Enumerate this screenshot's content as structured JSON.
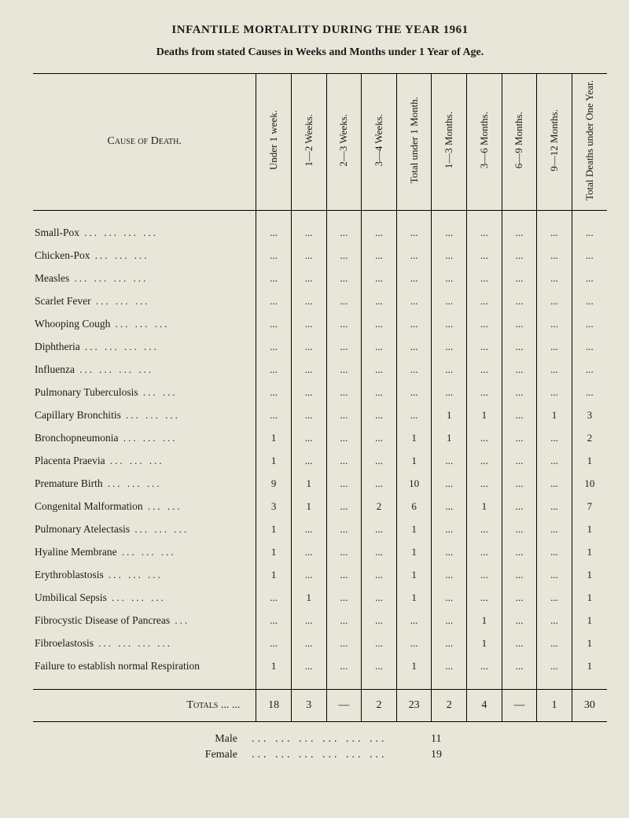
{
  "title": "INFANTILE MORTALITY DURING THE YEAR 1961",
  "subtitle": "Deaths from stated Causes in Weeks and Months under 1 Year of Age.",
  "headers": {
    "cause": "Cause of Death.",
    "cols": [
      "Under 1 week.",
      "1—2 Weeks.",
      "2—3 Weeks.",
      "3—4 Weeks.",
      "Total under 1 Month.",
      "1—3 Months.",
      "3—6 Months.",
      "6—9 Months.",
      "9—12 Months.",
      "Total Deaths under One Year."
    ]
  },
  "ellipsis": "...",
  "rows": [
    {
      "label": "Small-Pox",
      "pad": 4,
      "vals": [
        "...",
        "...",
        "...",
        "...",
        "...",
        "...",
        "...",
        "...",
        "...",
        "..."
      ]
    },
    {
      "label": "Chicken-Pox",
      "pad": 3,
      "vals": [
        "...",
        "...",
        "...",
        "...",
        "...",
        "...",
        "...",
        "...",
        "...",
        "..."
      ]
    },
    {
      "label": "Measles",
      "pad": 4,
      "vals": [
        "...",
        "...",
        "...",
        "...",
        "...",
        "...",
        "...",
        "...",
        "...",
        "..."
      ]
    },
    {
      "label": "Scarlet Fever",
      "pad": 3,
      "vals": [
        "...",
        "...",
        "...",
        "...",
        "...",
        "...",
        "...",
        "...",
        "...",
        "..."
      ]
    },
    {
      "label": "Whooping Cough",
      "pad": 3,
      "vals": [
        "...",
        "...",
        "...",
        "...",
        "...",
        "...",
        "...",
        "...",
        "...",
        "..."
      ]
    },
    {
      "label": "Diphtheria",
      "pad": 4,
      "vals": [
        "...",
        "...",
        "...",
        "...",
        "...",
        "...",
        "...",
        "...",
        "...",
        "..."
      ]
    },
    {
      "label": "Influenza",
      "pad": 4,
      "vals": [
        "...",
        "...",
        "...",
        "...",
        "...",
        "...",
        "...",
        "...",
        "...",
        "..."
      ]
    },
    {
      "label": "Pulmonary Tuberculosis",
      "pad": 2,
      "vals": [
        "...",
        "...",
        "...",
        "...",
        "...",
        "...",
        "...",
        "...",
        "...",
        "..."
      ]
    },
    {
      "label": "Capillary Bronchitis",
      "pad": 3,
      "vals": [
        "...",
        "...",
        "...",
        "...",
        "...",
        "1",
        "1",
        "...",
        "1",
        "3"
      ]
    },
    {
      "label": "Bronchopneumonia",
      "pad": 3,
      "vals": [
        "1",
        "...",
        "...",
        "...",
        "1",
        "1",
        "...",
        "...",
        "...",
        "2"
      ]
    },
    {
      "label": "Placenta Praevia",
      "pad": 3,
      "vals": [
        "1",
        "...",
        "...",
        "...",
        "1",
        "...",
        "...",
        "...",
        "...",
        "1"
      ]
    },
    {
      "label": "Premature Birth",
      "pad": 3,
      "vals": [
        "9",
        "1",
        "...",
        "...",
        "10",
        "...",
        "...",
        "...",
        "...",
        "10"
      ]
    },
    {
      "label": "Congenital Malformation",
      "pad": 2,
      "vals": [
        "3",
        "1",
        "...",
        "2",
        "6",
        "...",
        "1",
        "...",
        "...",
        "7"
      ]
    },
    {
      "label": "Pulmonary Atelectasis",
      "pad": 3,
      "vals": [
        "1",
        "...",
        "...",
        "...",
        "1",
        "...",
        "...",
        "...",
        "...",
        "1"
      ]
    },
    {
      "label": "Hyaline Membrane",
      "pad": 3,
      "vals": [
        "1",
        "...",
        "...",
        "...",
        "1",
        "...",
        "...",
        "...",
        "...",
        "1"
      ]
    },
    {
      "label": "Erythroblastosis",
      "pad": 3,
      "vals": [
        "1",
        "...",
        "...",
        "...",
        "1",
        "...",
        "...",
        "...",
        "...",
        "1"
      ]
    },
    {
      "label": "Umbilical Sepsis",
      "pad": 3,
      "vals": [
        "...",
        "1",
        "...",
        "...",
        "1",
        "...",
        "...",
        "...",
        "...",
        "1"
      ]
    },
    {
      "label": "Fibrocystic Disease of Pancreas",
      "pad": 1,
      "vals": [
        "...",
        "...",
        "...",
        "...",
        "...",
        "...",
        "1",
        "...",
        "...",
        "1"
      ]
    },
    {
      "label": "Fibroelastosis",
      "pad": 4,
      "vals": [
        "...",
        "...",
        "...",
        "...",
        "...",
        "...",
        "1",
        "...",
        "...",
        "1"
      ]
    },
    {
      "label": "Failure to establish normal Respiration",
      "pad": 0,
      "vals": [
        "1",
        "...",
        "...",
        "...",
        "1",
        "...",
        "...",
        "...",
        "...",
        "1"
      ]
    }
  ],
  "totals": {
    "label": "Totals ...   ...",
    "vals": [
      "18",
      "3",
      "—",
      "2",
      "23",
      "2",
      "4",
      "—",
      "1",
      "30"
    ]
  },
  "summary": {
    "male_label": "Male",
    "female_label": "Female",
    "male": "11",
    "female": "19"
  },
  "style": {
    "background_color": "#e8e6d8",
    "text_color": "#1a1a1a",
    "border_color": "#000000",
    "font_family": "Georgia, Times New Roman, serif"
  }
}
